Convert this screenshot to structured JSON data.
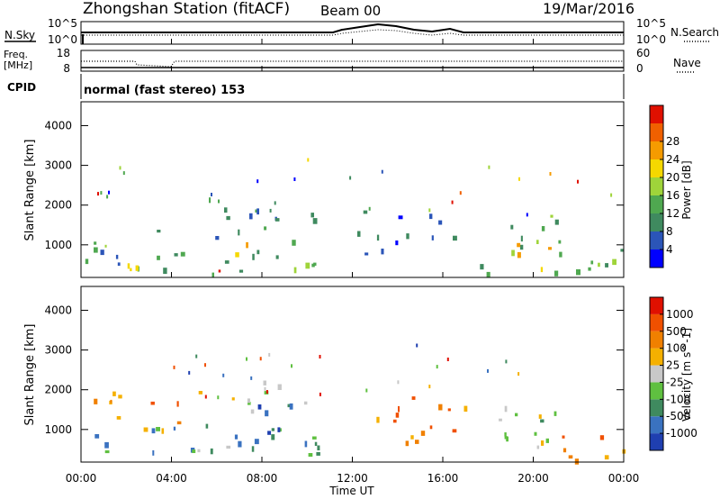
{
  "header": {
    "station": "Zhongshan Station (fitACF)",
    "beam": "Beam 00",
    "date": "19/Mar/2016"
  },
  "top_panels": {
    "nsky_label": "N.Sky",
    "nsky_ticks": [
      "10^5",
      "10^0"
    ],
    "nsearch_label": "N.Search",
    "nsearch_ticks": [
      "10^5",
      "10^0"
    ],
    "freq_label_1": "Freq.",
    "freq_label_2": "[MHz]",
    "freq_ticks": [
      "18",
      "8"
    ],
    "nave_label": "Nave",
    "nave_ticks": [
      "60",
      "0"
    ],
    "cpid_label": "CPID",
    "cpid_text": "normal (fast stereo) 153"
  },
  "chart_data": [
    {
      "type": "heatmap",
      "name": "power",
      "ylabel": "Slant Range [km]",
      "ylim": [
        180,
        4600
      ],
      "yticks": [
        "1000",
        "2000",
        "3000",
        "4000"
      ],
      "ytick_values": [
        1000,
        2000,
        3000,
        4000
      ],
      "colorbar_label": "Power [dB]",
      "colorbar_ticks": [
        "4",
        "8",
        "12",
        "16",
        "20",
        "24",
        "28"
      ],
      "colorbar_colors": [
        "#0000ff",
        "#2b55b8",
        "#3f8a5f",
        "#4fa850",
        "#9fd43a",
        "#f5d800",
        "#f59b00",
        "#f06000",
        "#e01000"
      ],
      "blobs": [
        {
          "t": [
            0.0,
            10.9
          ],
          "r": [
            250,
            1150
          ],
          "v": 10
        },
        {
          "t": [
            0.2,
            2.2
          ],
          "r": [
            300,
            650
          ],
          "v": 22
        },
        {
          "t": [
            2.0,
            3.5
          ],
          "r": [
            350,
            520
          ],
          "v": 26
        },
        {
          "t": [
            4.2,
            6.8
          ],
          "r": [
            320,
            480
          ],
          "v": 29
        },
        {
          "t": [
            6.3,
            7.4
          ],
          "r": [
            600,
            1300
          ],
          "v": 22
        },
        {
          "t": [
            5.0,
            10.9
          ],
          "r": [
            1100,
            2200
          ],
          "v": 7
        },
        {
          "t": [
            2.5,
            4.0
          ],
          "r": [
            1300,
            1700
          ],
          "v": 12
        },
        {
          "t": [
            12.2,
            17.5
          ],
          "r": [
            800,
            1900
          ],
          "v": 6
        },
        {
          "t": [
            17.5,
            21.2
          ],
          "r": [
            250,
            1650
          ],
          "v": 14
        },
        {
          "t": [
            19.0,
            20.7
          ],
          "r": [
            700,
            1500
          ],
          "v": 24
        },
        {
          "t": [
            20.2,
            21.1
          ],
          "r": [
            1500,
            2200
          ],
          "v": 15
        },
        {
          "t": [
            21.0,
            24.0
          ],
          "r": [
            250,
            1400
          ],
          "v": 12
        }
      ]
    },
    {
      "type": "heatmap",
      "name": "velocity",
      "ylabel": "Slant Range [km]",
      "xlabel": "Time UT",
      "xlim": [
        0,
        24
      ],
      "xticks": [
        "00:00",
        "04:00",
        "08:00",
        "12:00",
        "16:00",
        "20:00",
        "00:00"
      ],
      "ylim": [
        180,
        4600
      ],
      "yticks": [
        "1000",
        "2000",
        "3000",
        "4000"
      ],
      "ytick_values": [
        1000,
        2000,
        3000,
        4000
      ],
      "colorbar_label": "Velocity [m s^-1]",
      "colorbar_ticks": [
        "1000",
        "500",
        "100",
        "25",
        "-25",
        "-100",
        "-500",
        "-1000"
      ],
      "colorbar_colors": [
        "#1f3fb0",
        "#3a72c0",
        "#3f8a5f",
        "#5fc040",
        "#c8c8c8",
        "#f5b000",
        "#f08000",
        "#f05000",
        "#e01000"
      ],
      "blobs": [
        {
          "t": [
            0.0,
            10.9
          ],
          "r": [
            250,
            1100
          ],
          "v": 2
        },
        {
          "t": [
            4.5,
            7.2
          ],
          "r": [
            300,
            650
          ],
          "v": 3
        },
        {
          "t": [
            5.5,
            9.5
          ],
          "r": [
            700,
            1700
          ],
          "v": 1
        },
        {
          "t": [
            6.5,
            10.9
          ],
          "r": [
            1500,
            2300
          ],
          "v": 4
        },
        {
          "t": [
            0.5,
            6.0
          ],
          "r": [
            1000,
            2000
          ],
          "v": 6
        },
        {
          "t": [
            12.2,
            17.5
          ],
          "r": [
            700,
            1900
          ],
          "v": 6
        },
        {
          "t": [
            17.5,
            21.0
          ],
          "r": [
            300,
            1600
          ],
          "v": 4
        },
        {
          "t": [
            19.3,
            20.8
          ],
          "r": [
            400,
            1300
          ],
          "v": 3
        },
        {
          "t": [
            20.5,
            24.0
          ],
          "r": [
            250,
            1200
          ],
          "v": 6
        }
      ]
    }
  ]
}
